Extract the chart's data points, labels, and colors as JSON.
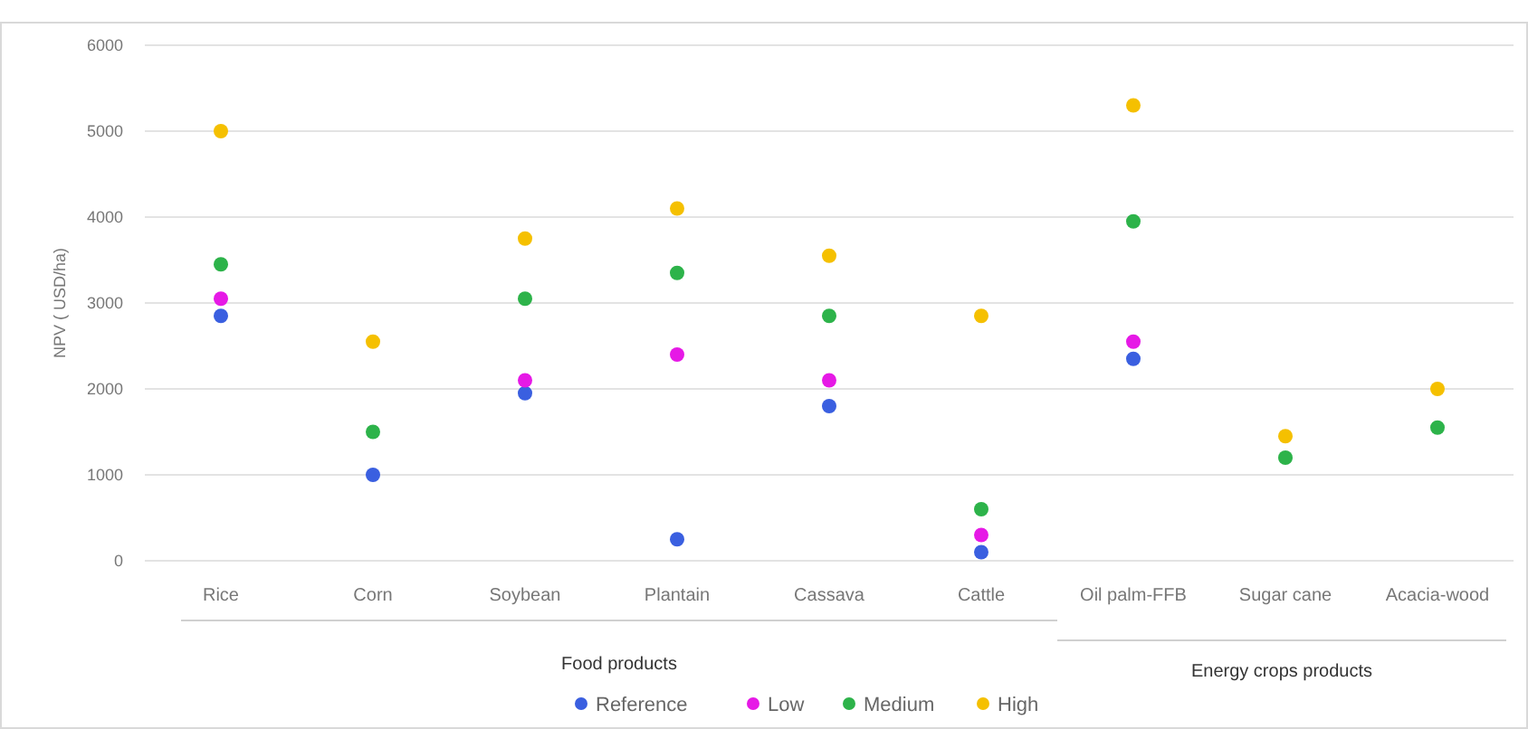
{
  "chart_data": {
    "type": "scatter",
    "ylabel": "NPV ( USD/ha)",
    "categories": [
      "Rice",
      "Corn",
      "Soybean",
      "Plantain",
      "Cassava",
      "Cattle",
      "Oil palm-FFB",
      "Sugar cane",
      "Acacia-wood"
    ],
    "series": [
      {
        "name": "Reference",
        "color": "#3a5fe0",
        "values": [
          2850,
          1000,
          1950,
          250,
          1800,
          100,
          2350,
          null,
          null
        ]
      },
      {
        "name": "Low",
        "color": "#e619e6",
        "values": [
          3050,
          null,
          2100,
          2400,
          2100,
          300,
          2550,
          null,
          null
        ]
      },
      {
        "name": "Medium",
        "color": "#2db34a",
        "values": [
          3450,
          1500,
          3050,
          3350,
          2850,
          600,
          3950,
          1200,
          1550
        ]
      },
      {
        "name": "High",
        "color": "#f5c000",
        "values": [
          5000,
          2550,
          3750,
          4100,
          3550,
          2850,
          5300,
          1450,
          2000
        ]
      }
    ],
    "ylim": [
      0,
      6000
    ],
    "yticks": [
      0,
      1000,
      2000,
      3000,
      4000,
      5000,
      6000
    ],
    "grid": "y",
    "legend": "bottom",
    "marker": "circle",
    "annotations": [
      "Food products",
      "Energy crops products"
    ]
  }
}
